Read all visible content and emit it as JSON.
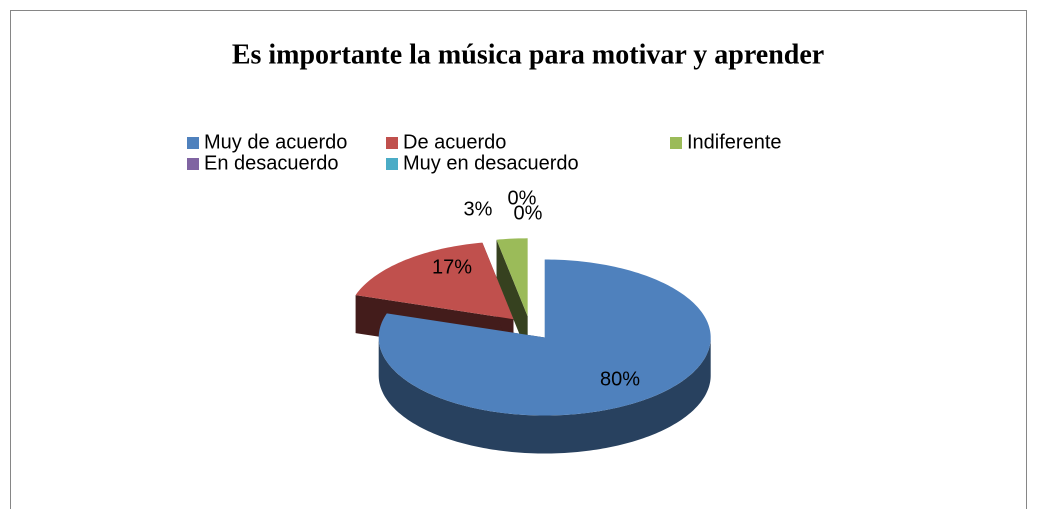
{
  "chart_data": {
    "type": "pie",
    "title": "Es importante la música para motivar y aprender",
    "categories": [
      "Muy de acuerdo",
      "De acuerdo",
      "Indiferente",
      "En desacuerdo",
      "Muy en desacuerdo"
    ],
    "values": [
      80,
      17,
      3,
      0,
      0
    ],
    "value_labels": [
      "80%",
      "17%",
      "3%",
      "0%",
      "0%"
    ],
    "colors": [
      "#4f81bd",
      "#c0504d",
      "#9bbb59",
      "#8064a2",
      "#4bacc6"
    ],
    "legend": "top"
  }
}
